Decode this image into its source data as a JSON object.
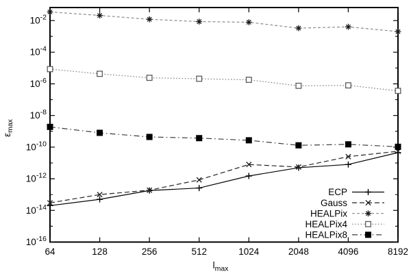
{
  "chart_data": {
    "type": "line",
    "title": "",
    "xlabel_base": "l",
    "xlabel_sub": "max",
    "ylabel_base": "ε",
    "ylabel_sub": "max",
    "x_scale": "log2",
    "y_scale": "log10",
    "x": [
      64,
      128,
      256,
      512,
      1024,
      2048,
      4096,
      8192
    ],
    "x_tick_labels": [
      "64",
      "128",
      "256",
      "512",
      "1024",
      "2048",
      "4096",
      "8192"
    ],
    "y_tick_exponents": [
      -2,
      -4,
      -6,
      -8,
      -10,
      -12,
      -14,
      -16
    ],
    "y_minor_exponents": [
      -3,
      -5,
      -7,
      -9,
      -11,
      -13,
      -15
    ],
    "ylim_exponents": [
      -16,
      -1.2
    ],
    "grid": false,
    "legend_position": "bottom-right-inside",
    "axis_color": "#000000",
    "background_color": "#ffffff",
    "series": [
      {
        "name": "ECP",
        "marker": "plus",
        "line_style": "solid",
        "color": "#000000",
        "values": [
          2e-14,
          5e-14,
          1.8e-13,
          2.6e-13,
          1.5e-12,
          5e-12,
          8e-12,
          4.5e-11
        ]
      },
      {
        "name": "Gauss",
        "marker": "cross",
        "line_style": "dashed",
        "color": "#222222",
        "values": [
          3e-14,
          1e-13,
          1.9e-13,
          8.5e-13,
          8e-12,
          5.5e-12,
          2.5e-11,
          5.5e-11
        ]
      },
      {
        "name": "HEALPix",
        "marker": "asterisk",
        "line_style": "dense-dashed",
        "color": "#8a8a8a",
        "marker_color": "#1a1a1a",
        "values": [
          0.035,
          0.021,
          0.012,
          0.0086,
          0.0078,
          0.0033,
          0.004,
          0.002
        ]
      },
      {
        "name": "HEALPix4",
        "marker": "open-square",
        "line_style": "dotted",
        "color": "#7d7d7d",
        "marker_color": "#5a5a5a",
        "values": [
          8.5e-06,
          4.3e-06,
          2.4e-06,
          2.1e-06,
          1.8e-06,
          7.5e-07,
          8e-07,
          3.6e-07
        ]
      },
      {
        "name": "HEALPix8",
        "marker": "filled-square",
        "line_style": "dashdot",
        "color": "#3c3c3c",
        "marker_color": "#000000",
        "values": [
          1.9e-09,
          8e-10,
          4.4e-10,
          3.7e-10,
          2.7e-10,
          1.3e-10,
          1.5e-10,
          1.05e-10
        ]
      }
    ]
  }
}
